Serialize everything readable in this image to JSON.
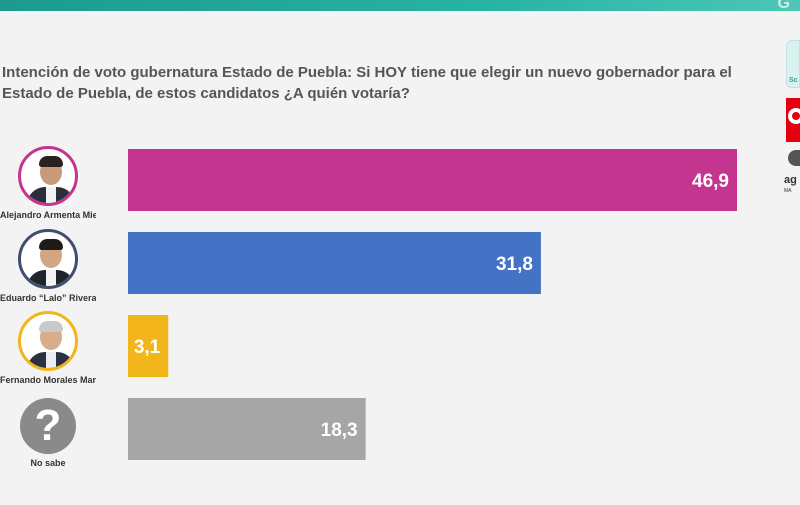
{
  "header": {
    "question": "Intención de voto gubernatura Estado de Puebla: Si HOY tiene que elegir un nuevo gobernador para el Estado de Puebla, de estos candidatos ¿A quién votaría?"
  },
  "candidates": [
    {
      "label": "Alejandro Armenta Mier",
      "ring_color": "#c3358e"
    },
    {
      "label": "Eduardo “Lalo” Rivera",
      "ring_color": "#3f6fbf"
    },
    {
      "label": "Fernando Morales Martínez",
      "ring_color": "#f2b51a"
    },
    {
      "label": "No sabe",
      "icon": "question-mark-icon"
    }
  ],
  "logos": {
    "logo_d_text": "ag",
    "logo_d_sub": "MA"
  },
  "chart_data": {
    "type": "bar",
    "orientation": "horizontal",
    "categories": [
      "Alejandro Armenta Mier",
      "Eduardo “Lalo” Rivera",
      "Fernando Morales Martínez",
      "No sabe"
    ],
    "values": [
      46.9,
      31.8,
      3.1,
      18.3
    ],
    "value_labels": [
      "46,9",
      "31,8",
      "3,1",
      "18,3"
    ],
    "colors": [
      "#c3358e",
      "#4472c4",
      "#f2b51a",
      "#a6a6a6"
    ],
    "title": "",
    "xlabel": "",
    "ylabel": "",
    "xlim": [
      0,
      57
    ],
    "grid": false,
    "legend": "none"
  }
}
